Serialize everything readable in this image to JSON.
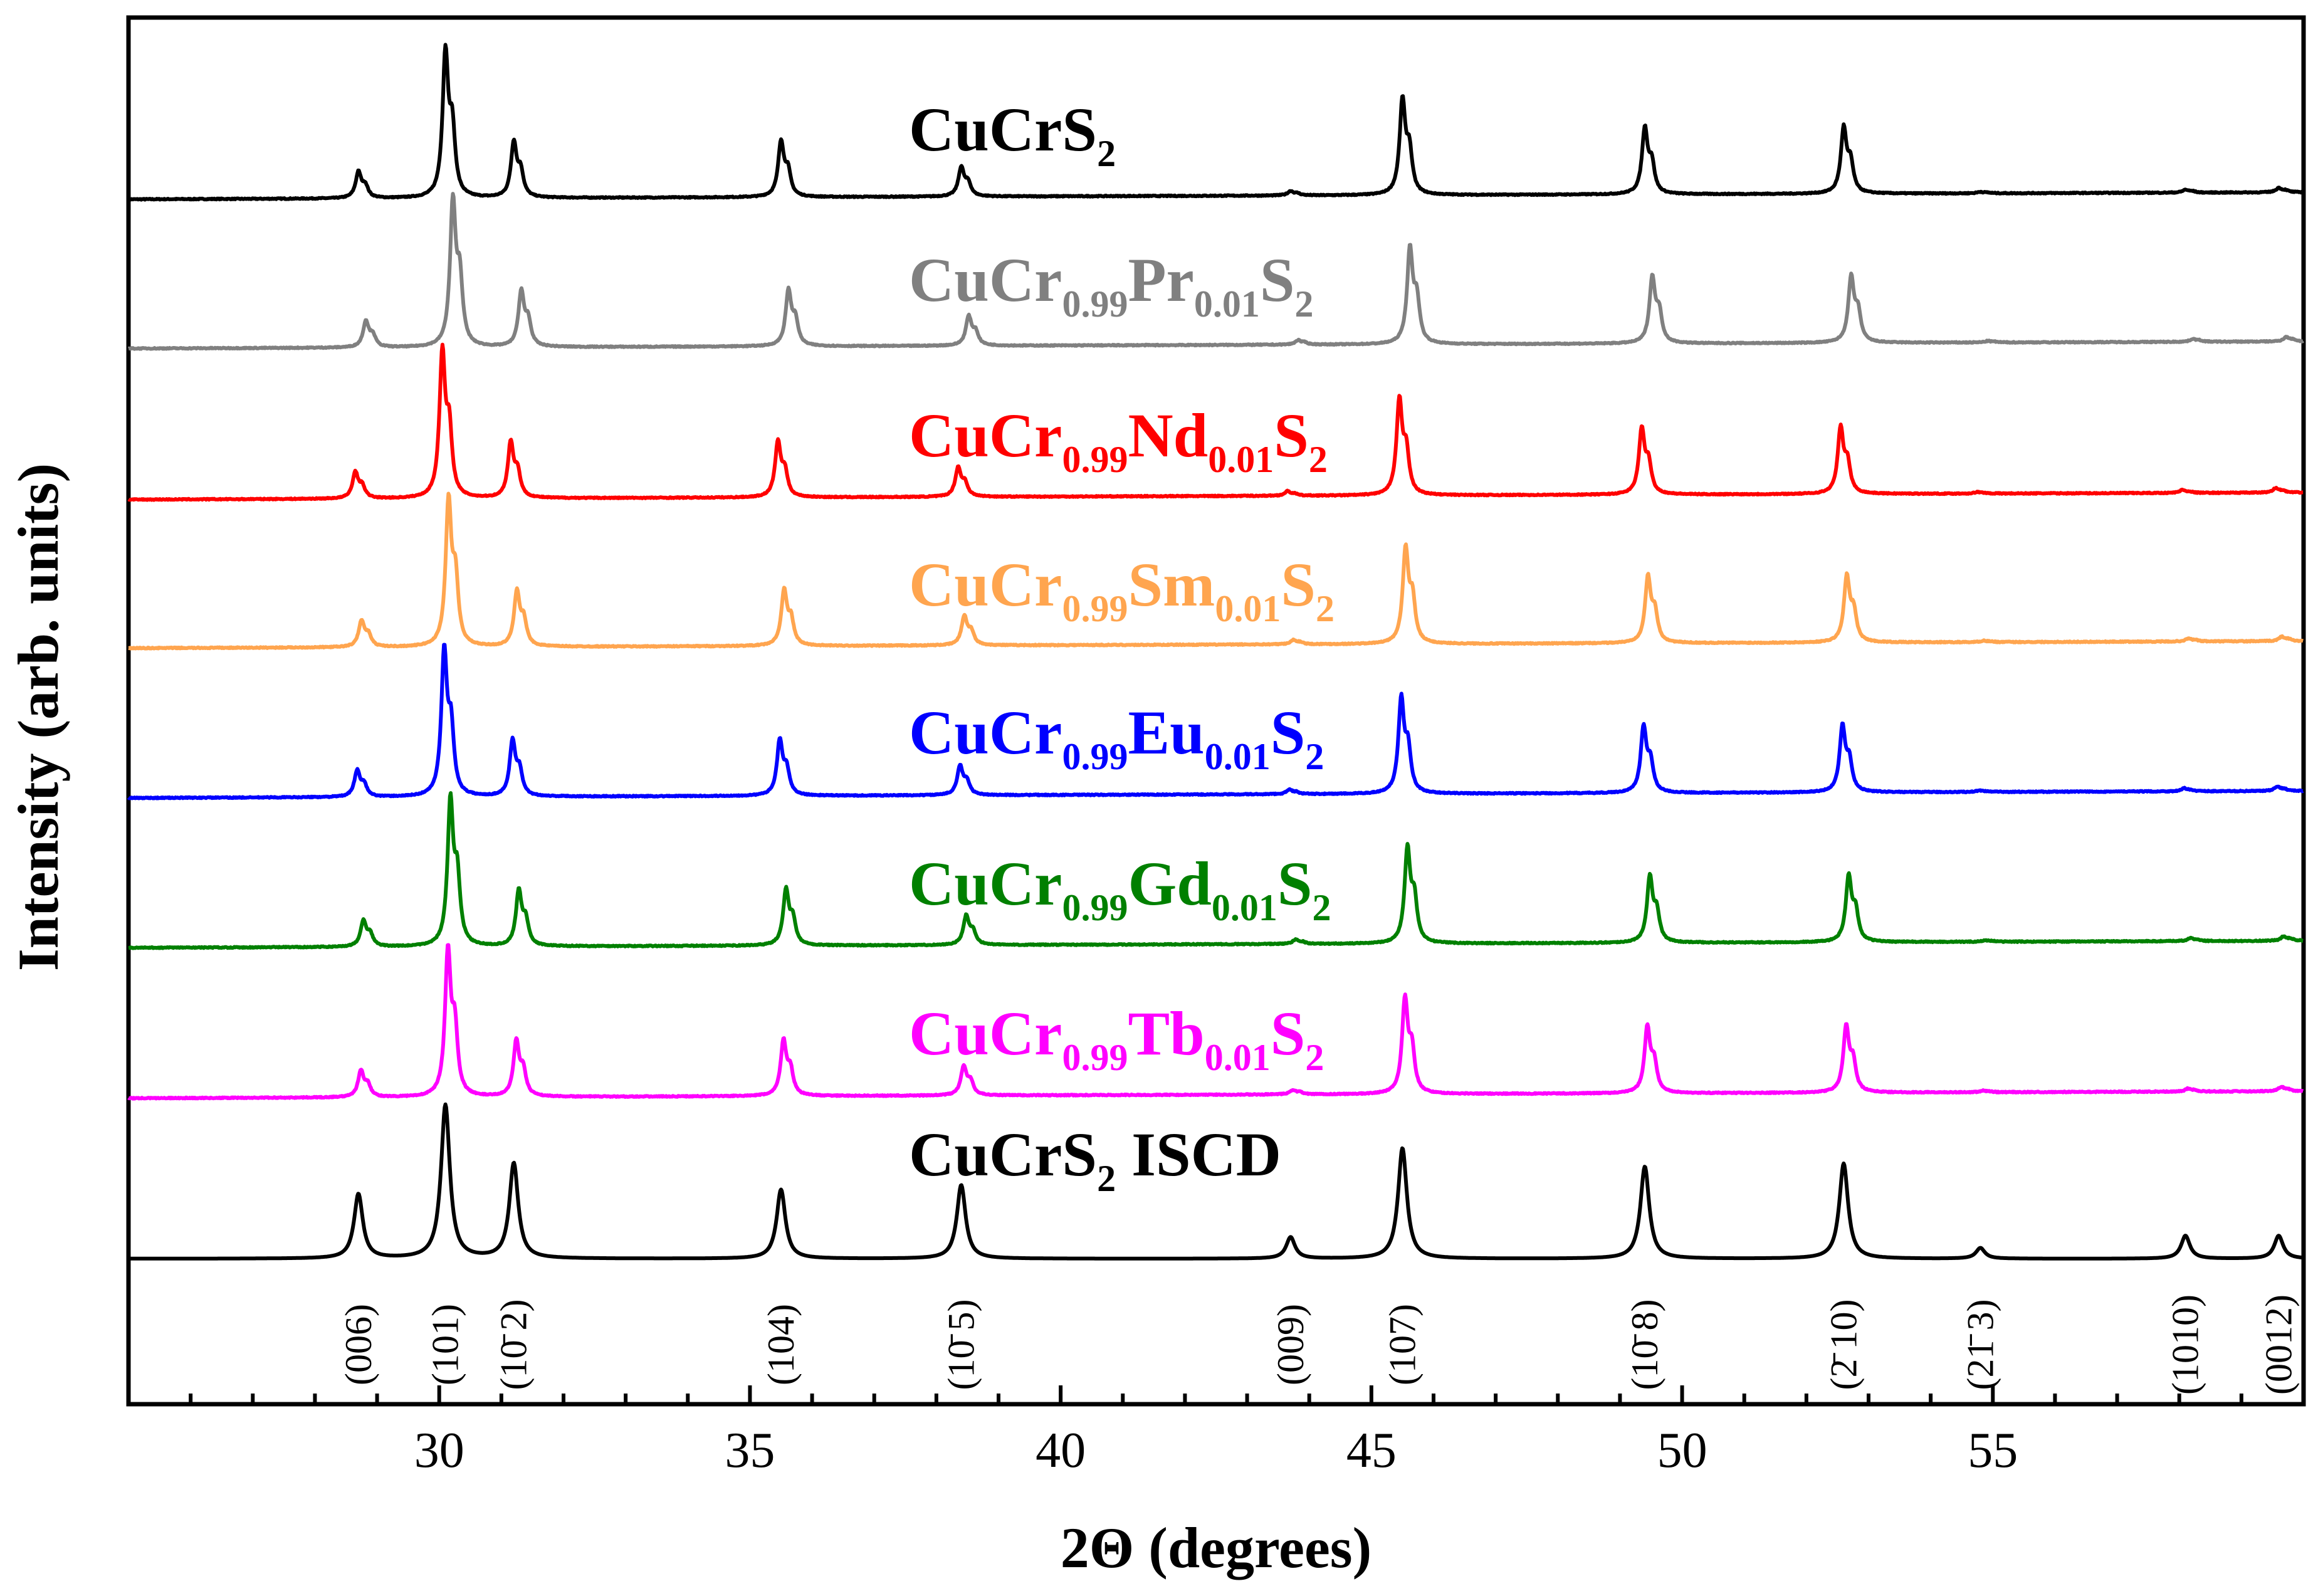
{
  "chart_data": {
    "type": "line",
    "title": "",
    "xlabel": "2Θ (degrees)",
    "ylabel": "Intensity (arb. units)",
    "xlim": [
      25,
      60
    ],
    "x_ticks": [
      30,
      35,
      40,
      45,
      50,
      55
    ],
    "x_tick_labels": [
      "30",
      "35",
      "40",
      "45",
      "50",
      "55"
    ],
    "peaks": [
      {
        "hkl": "(006)",
        "x": 28.7,
        "ref": 0.42,
        "exp": 0.18
      },
      {
        "hkl": "(101)",
        "x": 30.1,
        "ref": 1.0,
        "exp": 1.0
      },
      {
        "hkl": "(10̅ 2)",
        "x": 31.2,
        "ref": 0.62,
        "exp": 0.38
      },
      {
        "hkl": "(104)",
        "x": 35.5,
        "ref": 0.45,
        "exp": 0.38
      },
      {
        "hkl": "(10̅ 5)",
        "x": 38.4,
        "ref": 0.48,
        "exp": 0.2
      },
      {
        "hkl": "(009)",
        "x": 43.7,
        "ref": 0.14,
        "exp": 0.03
      },
      {
        "hkl": "(107)",
        "x": 45.5,
        "ref": 0.72,
        "exp": 0.65
      },
      {
        "hkl": "(10̅ 8)",
        "x": 49.4,
        "ref": 0.6,
        "exp": 0.45
      },
      {
        "hkl": "(2̅ 10)",
        "x": 52.6,
        "ref": 0.62,
        "exp": 0.45
      },
      {
        "hkl": "(21̅ 3)",
        "x": 54.8,
        "ref": 0.07,
        "exp": 0.01
      },
      {
        "hkl": "(1010)",
        "x": 58.1,
        "ref": 0.15,
        "exp": 0.02
      },
      {
        "hkl": "(0012)",
        "x": 59.6,
        "ref": 0.15,
        "exp": 0.03
      }
    ],
    "miller_labels": [
      "(006)",
      "(101)",
      "(10̄ 2)",
      "(104)",
      "(10̄ 5)",
      "(009)",
      "(107)",
      "(10̄ 8)",
      "(2̄ 10)",
      "(21̄ 3)",
      "(1010)",
      "(0012)"
    ],
    "series": [
      {
        "name": "CuCrS2",
        "label_parts": [
          "CuCrS",
          "2",
          ""
        ],
        "color": "#000000",
        "shift": 0.0,
        "noise": 0.6
      },
      {
        "name": "CuCr0.99Pr0.01S2",
        "label_parts": [
          "CuCr",
          "0.99",
          "Pr",
          "0.01",
          "S",
          "2"
        ],
        "color": "#808080",
        "shift": 0.12,
        "noise": 0.6
      },
      {
        "name": "CuCr0.99Nd0.01S2",
        "label_parts": [
          "CuCr",
          "0.99",
          "Nd",
          "0.01",
          "S",
          "2"
        ],
        "color": "#ff0000",
        "shift": -0.05,
        "noise": 0.6
      },
      {
        "name": "CuCr0.99Sm0.01S2",
        "label_parts": [
          "CuCr",
          "0.99",
          "Sm",
          "0.01",
          "S",
          "2"
        ],
        "color": "#ffa54f",
        "shift": 0.05,
        "noise": 0.6
      },
      {
        "name": "CuCr0.99Eu0.01S2",
        "label_parts": [
          "CuCr",
          "0.99",
          "Eu",
          "0.01",
          "S",
          "2"
        ],
        "color": "#0000ff",
        "shift": -0.02,
        "noise": 0.6
      },
      {
        "name": "CuCr0.99Gd0.01S2",
        "label_parts": [
          "CuCr",
          "0.99",
          "Gd",
          "0.01",
          "S",
          "2"
        ],
        "color": "#008000",
        "shift": 0.08,
        "noise": 0.6
      },
      {
        "name": "CuCr0.99Tb0.01S2",
        "label_parts": [
          "CuCr",
          "0.99",
          "Tb",
          "0.01",
          "S",
          "2"
        ],
        "color": "#ff00ff",
        "shift": 0.04,
        "noise": 0.6
      },
      {
        "name": "CuCrS2 ISCD",
        "label_parts": [
          "CuCrS",
          "2",
          " ISCD"
        ],
        "color": "#000000",
        "shift": 0.1,
        "noise": 0.0,
        "reference": true
      }
    ]
  }
}
